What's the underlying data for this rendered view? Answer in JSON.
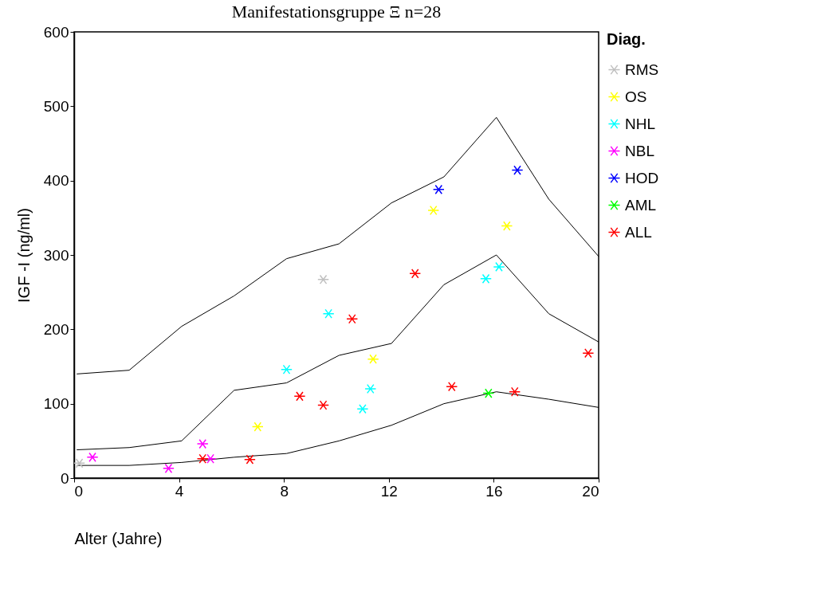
{
  "chart_data": {
    "type": "scatter",
    "title": "Manifestationsgruppe Ξ n=28",
    "xlabel": "Alter (Jahre)",
    "ylabel": "IGF -I (ng/ml)",
    "legend_title": "Diag.",
    "xlim": [
      0,
      20
    ],
    "xticks": [
      0,
      4,
      8,
      12,
      16,
      20
    ],
    "ylim": [
      0,
      600
    ],
    "yticks": [
      0,
      100,
      200,
      300,
      400,
      500,
      600
    ],
    "grid": false,
    "legend": "right",
    "marker": "cross",
    "series": [
      {
        "type": "line",
        "marker": "none",
        "color": "#000000",
        "x": [
          0.1,
          2.1,
          4.1,
          6.1,
          8.1,
          10.1,
          12.1,
          14.1,
          16.1,
          18.1,
          20
        ],
        "values": [
          140,
          145,
          204,
          245,
          295,
          315,
          370,
          405,
          485,
          375,
          298
        ]
      },
      {
        "type": "line",
        "marker": "none",
        "color": "#000000",
        "x": [
          0.1,
          2.1,
          4.1,
          6.1,
          8.1,
          10.1,
          12.1,
          14.1,
          16.1,
          18.1,
          20
        ],
        "values": [
          38,
          41,
          50,
          118,
          128,
          165,
          181,
          260,
          300,
          221,
          183
        ]
      },
      {
        "type": "line",
        "marker": "none",
        "color": "#000000",
        "x": [
          0.1,
          2.1,
          4.1,
          6.1,
          8.1,
          10.1,
          12.1,
          14.1,
          16.1,
          18.1,
          20
        ],
        "values": [
          17,
          17,
          21,
          28,
          33,
          50,
          71,
          100,
          116,
          106,
          95
        ]
      },
      {
        "type": "scatter",
        "name": "RMS",
        "color": "#c0c0c0",
        "x": [
          0.2,
          9.5
        ],
        "values": [
          20,
          267
        ]
      },
      {
        "type": "scatter",
        "name": "OS",
        "color": "#ffff00",
        "x": [
          7.0,
          11.4,
          13.7,
          16.5
        ],
        "values": [
          69,
          160,
          360,
          339
        ]
      },
      {
        "type": "scatter",
        "name": "NHL",
        "color": "#00ffff",
        "x": [
          8.1,
          9.7,
          11.0,
          11.3,
          15.7,
          16.2
        ],
        "values": [
          146,
          221,
          93,
          120,
          268,
          284
        ]
      },
      {
        "type": "scatter",
        "name": "NBL",
        "color": "#ff00ff",
        "x": [
          0.7,
          3.6,
          4.9,
          5.2
        ],
        "values": [
          28,
          13,
          46,
          26
        ]
      },
      {
        "type": "scatter",
        "name": "HOD",
        "color": "#0000ff",
        "x": [
          13.9,
          16.9
        ],
        "values": [
          388,
          414
        ]
      },
      {
        "type": "scatter",
        "name": "AML",
        "color": "#00ff00",
        "x": [
          15.8
        ],
        "values": [
          114
        ]
      },
      {
        "type": "scatter",
        "name": "ALL",
        "color": "#ff0000",
        "x": [
          4.9,
          6.7,
          8.6,
          9.5,
          10.6,
          13.0,
          14.4,
          16.8,
          19.6
        ],
        "values": [
          26,
          25,
          110,
          98,
          214,
          275,
          123,
          116,
          168
        ]
      }
    ]
  }
}
